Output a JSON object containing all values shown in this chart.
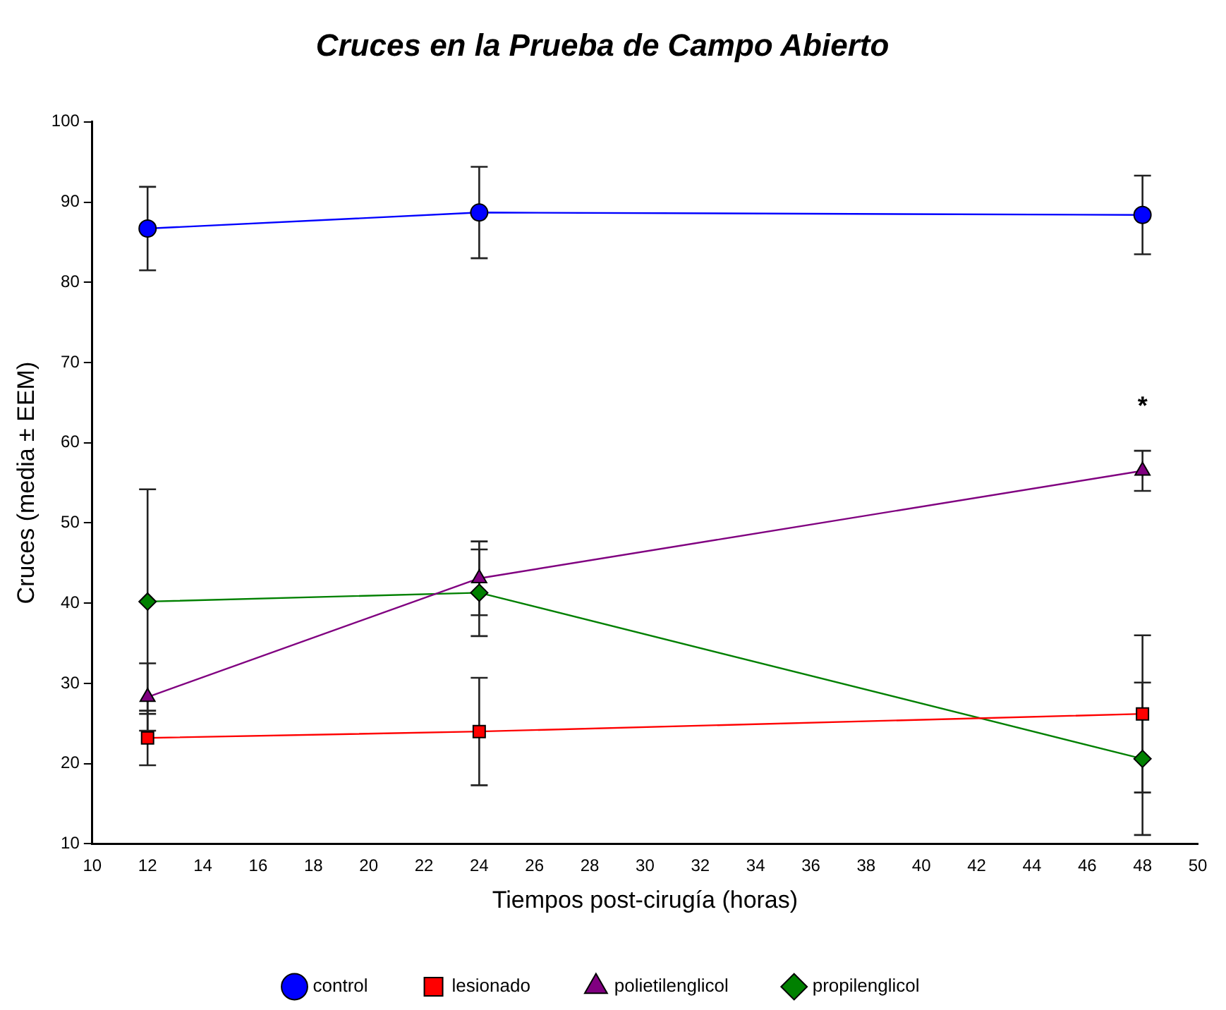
{
  "chart_data": {
    "type": "line",
    "title": "Cruces en la Prueba de Campo Abierto",
    "xlabel": "Tiempos post-cirugía (horas)",
    "ylabel": "Cruces (media ± EEM)",
    "x": [
      12,
      24,
      48
    ],
    "series": [
      {
        "name": "control",
        "color": "#0000ff",
        "marker": "circle",
        "values": [
          86.7,
          88.7,
          88.4
        ],
        "errors": [
          5.2,
          5.7,
          4.9
        ]
      },
      {
        "name": "lesionado",
        "color": "#ff0000",
        "marker": "square",
        "values": [
          23.2,
          24.0,
          26.2
        ],
        "errors": [
          3.4,
          6.7,
          9.8
        ]
      },
      {
        "name": "polietilenglicol",
        "color": "#800080",
        "marker": "triangle",
        "values": [
          28.3,
          43.1,
          56.5
        ],
        "errors": [
          4.2,
          4.6,
          2.5
        ]
      },
      {
        "name": "propilenglicol",
        "color": "#008000",
        "marker": "diamond",
        "values": [
          40.2,
          41.3,
          20.6
        ],
        "errors": [
          14,
          5.4,
          9.5
        ]
      }
    ],
    "xlim": [
      10,
      50
    ],
    "xticks": [
      10,
      12,
      14,
      16,
      18,
      20,
      22,
      24,
      26,
      28,
      30,
      32,
      34,
      36,
      38,
      40,
      42,
      44,
      46,
      48,
      50
    ],
    "ylim": [
      10,
      100
    ],
    "yticks": [
      10,
      20,
      30,
      40,
      50,
      60,
      70,
      80,
      90,
      100
    ],
    "grid": false,
    "legend": "bottom",
    "line_style": "solid",
    "annotations": [
      {
        "text": "*",
        "x": 48,
        "y": 56.5
      }
    ]
  }
}
